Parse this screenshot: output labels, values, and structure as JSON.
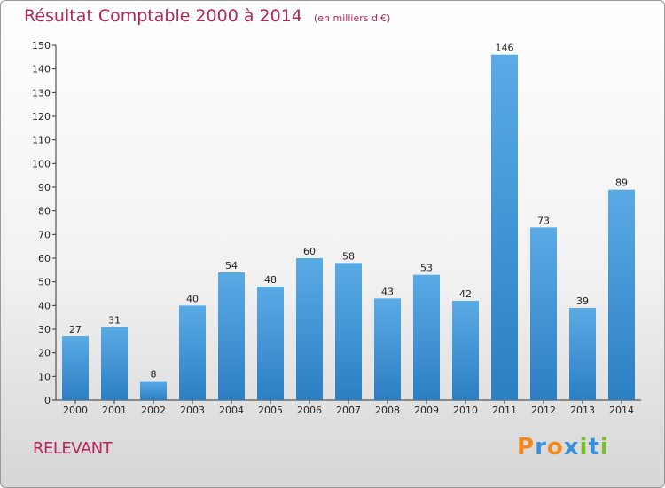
{
  "header": {
    "title": "Résultat Comptable 2000 à 2014",
    "unit": "(en milliers d'€)"
  },
  "footer": {
    "place": "RELEVANT",
    "logo": [
      "P",
      "r",
      "o",
      "x",
      "i",
      "t",
      "i"
    ]
  },
  "colors": {
    "accent": "#b5245c",
    "bar_light": "#5aaae6",
    "bar_dark": "#2b7fc3",
    "logo": [
      "#f08a1c",
      "#3a8fd8",
      "#f08a1c",
      "#3a8fd8",
      "#7dbb2e",
      "#3a8fd8",
      "#7dbb2e"
    ]
  },
  "chart_data": {
    "type": "bar",
    "title": "Résultat Comptable 2000 à 2014",
    "subtitle": "(en milliers d'€)",
    "categories": [
      "2000",
      "2001",
      "2002",
      "2003",
      "2004",
      "2005",
      "2006",
      "2007",
      "2008",
      "2009",
      "2010",
      "2011",
      "2012",
      "2013",
      "2014"
    ],
    "values": [
      27,
      31,
      8,
      40,
      54,
      48,
      60,
      58,
      43,
      53,
      42,
      146,
      73,
      39,
      89
    ],
    "ylim": [
      0,
      150
    ],
    "yticks": [
      0,
      10,
      20,
      30,
      40,
      50,
      60,
      70,
      80,
      90,
      100,
      110,
      120,
      130,
      140,
      150
    ],
    "grid": false,
    "data_labels": true
  }
}
